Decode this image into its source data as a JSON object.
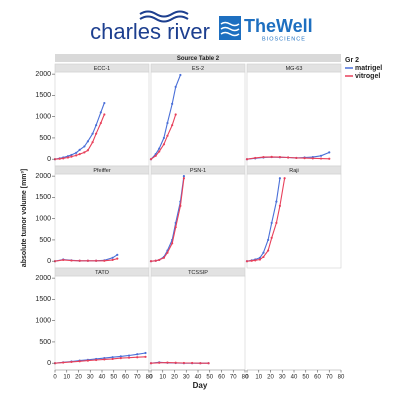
{
  "header": {
    "logo_left": "charles river",
    "logo_right": "TheWell",
    "logo_right_sub": "BIOSCIENCE"
  },
  "chart_data": {
    "type": "line",
    "title": "Source Table 2",
    "xlabel": "Day",
    "ylabel": "absolute tumor volume [mm³]",
    "legend_title": "Gr 2",
    "xlim": [
      0,
      80
    ],
    "xticks": [
      0,
      10,
      20,
      30,
      40,
      50,
      60,
      70,
      80
    ],
    "ylim": [
      -160,
      2050
    ],
    "yticks": [
      0,
      500,
      1000,
      1500,
      2000
    ],
    "facets": [
      {
        "title": "ECC-1",
        "series": [
          {
            "name": "matrigel",
            "color": "#4a6fd8",
            "x": [
              0,
              4,
              7,
              11,
              14,
              18,
              21,
              25,
              28,
              32,
              35,
              39,
              42
            ],
            "values": [
              0,
              20,
              40,
              70,
              100,
              150,
              220,
              300,
              420,
              600,
              800,
              1100,
              1320
            ]
          },
          {
            "name": "vitrogel",
            "color": "#e8405a",
            "x": [
              0,
              4,
              7,
              11,
              14,
              18,
              21,
              25,
              28,
              32,
              35,
              39,
              42
            ],
            "values": [
              0,
              10,
              20,
              40,
              60,
              90,
              120,
              160,
              210,
              400,
              600,
              850,
              1050
            ]
          }
        ]
      },
      {
        "title": "ES-2",
        "series": [
          {
            "name": "matrigel",
            "color": "#4a6fd8",
            "x": [
              0,
              4,
              7,
              11,
              14,
              18,
              21,
              25
            ],
            "values": [
              0,
              120,
              250,
              500,
              850,
              1300,
              1700,
              1980
            ]
          },
          {
            "name": "vitrogel",
            "color": "#e8405a",
            "x": [
              0,
              4,
              7,
              11,
              14,
              18,
              21
            ],
            "values": [
              0,
              80,
              180,
              350,
              550,
              800,
              1050
            ]
          }
        ]
      },
      {
        "title": "MG-63",
        "series": [
          {
            "name": "matrigel",
            "color": "#4a6fd8",
            "x": [
              0,
              7,
              14,
              21,
              28,
              35,
              42,
              49,
              56,
              63,
              70
            ],
            "values": [
              0,
              20,
              40,
              50,
              45,
              40,
              30,
              40,
              50,
              80,
              160
            ]
          },
          {
            "name": "vitrogel",
            "color": "#e8405a",
            "x": [
              0,
              7,
              14,
              21,
              28,
              35,
              42,
              49,
              56,
              63,
              70
            ],
            "values": [
              0,
              30,
              50,
              55,
              50,
              40,
              30,
              25,
              20,
              15,
              10
            ]
          }
        ]
      },
      {
        "title": "Pfeiffer",
        "series": [
          {
            "name": "matrigel",
            "color": "#4a6fd8",
            "x": [
              0,
              7,
              14,
              21,
              28,
              35,
              42,
              49,
              53
            ],
            "values": [
              0,
              40,
              20,
              10,
              10,
              10,
              20,
              80,
              150
            ]
          },
          {
            "name": "vitrogel",
            "color": "#e8405a",
            "x": [
              0,
              7,
              14,
              21,
              28,
              35,
              42,
              49,
              53
            ],
            "values": [
              0,
              30,
              15,
              10,
              10,
              10,
              10,
              30,
              60
            ]
          }
        ]
      },
      {
        "title": "PSN-1",
        "series": [
          {
            "name": "matrigel",
            "color": "#4a6fd8",
            "x": [
              0,
              4,
              7,
              11,
              14,
              18,
              21,
              25,
              28
            ],
            "values": [
              0,
              10,
              30,
              100,
              250,
              500,
              900,
              1400,
              2000
            ]
          },
          {
            "name": "vitrogel",
            "color": "#e8405a",
            "x": [
              0,
              4,
              7,
              11,
              14,
              18,
              21,
              25,
              28
            ],
            "values": [
              0,
              10,
              30,
              80,
              200,
              420,
              800,
              1300,
              1950
            ]
          }
        ]
      },
      {
        "title": "Raji",
        "series": [
          {
            "name": "matrigel",
            "color": "#4a6fd8",
            "x": [
              0,
              4,
              7,
              11,
              14,
              18,
              21,
              25,
              28
            ],
            "values": [
              0,
              20,
              40,
              80,
              200,
              500,
              900,
              1400,
              1950
            ]
          },
          {
            "name": "vitrogel",
            "color": "#e8405a",
            "x": [
              0,
              4,
              7,
              11,
              14,
              18,
              21,
              25,
              28,
              32
            ],
            "values": [
              0,
              10,
              20,
              40,
              100,
              250,
              550,
              900,
              1300,
              1950
            ]
          }
        ]
      },
      {
        "title": "TATO",
        "series": [
          {
            "name": "matrigel",
            "color": "#4a6fd8",
            "x": [
              0,
              7,
              14,
              21,
              28,
              35,
              42,
              49,
              56,
              63,
              70,
              77
            ],
            "values": [
              0,
              20,
              40,
              60,
              80,
              100,
              120,
              140,
              160,
              180,
              210,
              240
            ]
          },
          {
            "name": "vitrogel",
            "color": "#e8405a",
            "x": [
              0,
              7,
              14,
              21,
              28,
              35,
              42,
              49,
              56,
              63,
              70,
              77
            ],
            "values": [
              0,
              15,
              30,
              45,
              60,
              75,
              90,
              100,
              120,
              130,
              140,
              150
            ]
          }
        ]
      },
      {
        "title": "TCSSIP",
        "series": [
          {
            "name": "matrigel",
            "color": "#4a6fd8",
            "x": [
              0,
              7,
              14,
              21,
              28,
              35,
              42,
              49
            ],
            "values": [
              0,
              20,
              10,
              5,
              0,
              0,
              0,
              0
            ]
          },
          {
            "name": "vitrogel",
            "color": "#e8405a",
            "x": [
              0,
              7,
              14,
              21,
              28,
              35,
              42,
              49
            ],
            "values": [
              0,
              10,
              15,
              10,
              5,
              5,
              0,
              0
            ]
          }
        ]
      }
    ]
  }
}
